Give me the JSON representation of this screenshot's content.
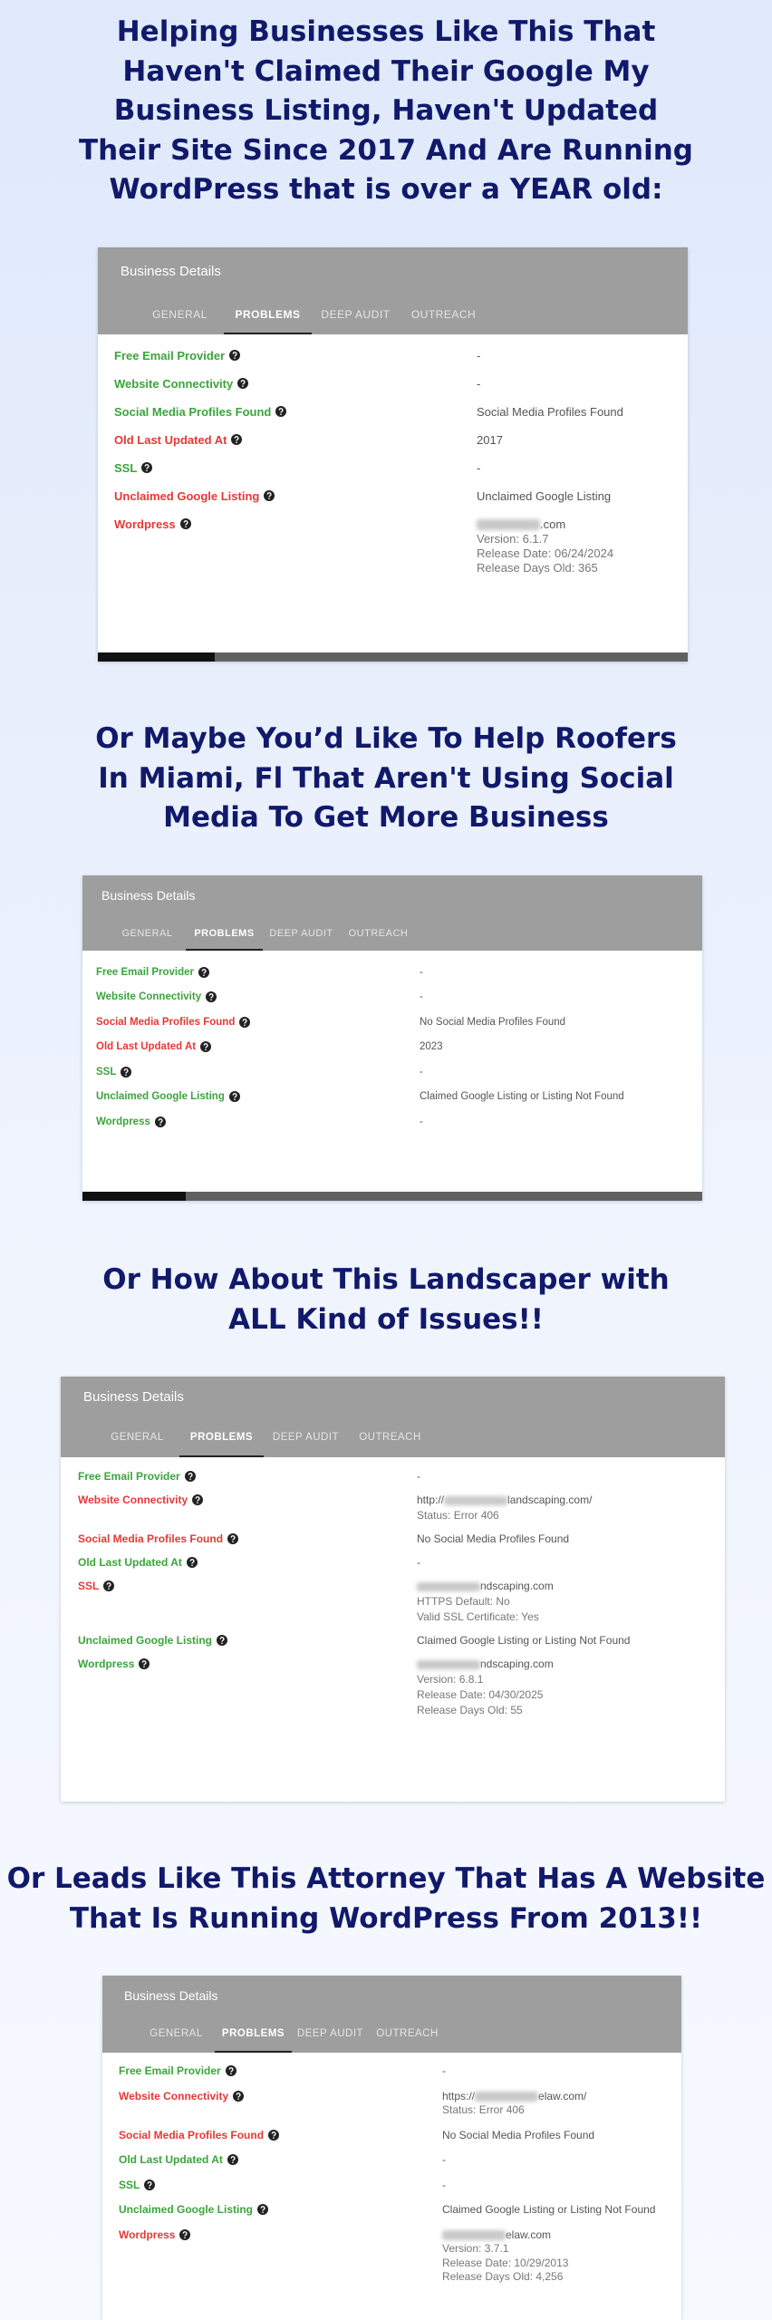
{
  "sections": [
    {
      "heading": [
        "Helping Businesses Like This That",
        "Haven't Claimed Their Google My",
        "Business Listing, Haven't Updated",
        "Their Site Since 2017 And Are Running",
        "WordPress that is over a YEAR old:"
      ],
      "card": {
        "title": "Business Details",
        "tabs": [
          "GENERAL",
          "PROBLEMS",
          "DEEP AUDIT",
          "OUTREACH"
        ],
        "active_tab": 1,
        "rows": [
          {
            "label": "Free Email Provider",
            "status": "green",
            "value": [
              "-"
            ]
          },
          {
            "label": "Website Connectivity",
            "status": "green",
            "value": [
              "-"
            ]
          },
          {
            "label": "Social Media Profiles Found",
            "status": "green",
            "value": [
              "Social Media Profiles Found"
            ]
          },
          {
            "label": "Old Last Updated At",
            "status": "red",
            "value": [
              "2017"
            ]
          },
          {
            "label": "SSL",
            "status": "green",
            "value": [
              "-"
            ]
          },
          {
            "label": "Unclaimed Google Listing",
            "status": "red",
            "value": [
              "Unclaimed Google Listing"
            ]
          },
          {
            "label": "Wordpress",
            "status": "red",
            "value": [
              [
                "",
                ".com"
              ],
              "Version: 6.1.7",
              "Release Date: 06/24/2024",
              "Release Days Old: 365"
            ]
          }
        ]
      }
    },
    {
      "heading": [
        "Or Maybe You’d Like To Help Roofers",
        "In Miami, Fl That Aren't Using Social",
        "Media To Get More Business"
      ],
      "card": {
        "title": "Business Details",
        "tabs": [
          "GENERAL",
          "PROBLEMS",
          "DEEP AUDIT",
          "OUTREACH"
        ],
        "active_tab": 1,
        "rows": [
          {
            "label": "Free Email Provider",
            "status": "green",
            "value": [
              "-"
            ]
          },
          {
            "label": "Website Connectivity",
            "status": "green",
            "value": [
              "-"
            ]
          },
          {
            "label": "Social Media Profiles Found",
            "status": "red",
            "value": [
              "No Social Media Profiles Found"
            ]
          },
          {
            "label": "Old Last Updated At",
            "status": "red",
            "value": [
              "2023"
            ]
          },
          {
            "label": "SSL",
            "status": "green",
            "value": [
              "-"
            ]
          },
          {
            "label": "Unclaimed Google Listing",
            "status": "green",
            "value": [
              "Claimed Google Listing or Listing Not Found"
            ]
          },
          {
            "label": "Wordpress",
            "status": "green",
            "value": [
              "-"
            ]
          }
        ]
      }
    },
    {
      "heading": [
        "Or How About This Landscaper with",
        "ALL Kind of Issues!!"
      ],
      "card": {
        "title": "Business Details",
        "tabs": [
          "GENERAL",
          "PROBLEMS",
          "DEEP AUDIT",
          "OUTREACH"
        ],
        "active_tab": 1,
        "rows": [
          {
            "label": "Free Email Provider",
            "status": "green",
            "value": [
              "-"
            ]
          },
          {
            "label": "Website Connectivity",
            "status": "red",
            "value": [
              [
                "http://",
                "landscaping.com/"
              ],
              "Status: Error 406"
            ]
          },
          {
            "label": "Social Media Profiles Found",
            "status": "red",
            "value": [
              "No Social Media Profiles Found"
            ]
          },
          {
            "label": "Old Last Updated At",
            "status": "green",
            "value": [
              "-"
            ]
          },
          {
            "label": "SSL",
            "status": "red",
            "value": [
              [
                "",
                "ndscaping.com"
              ],
              "HTTPS Default: No",
              "Valid SSL Certificate: Yes"
            ]
          },
          {
            "label": "Unclaimed Google Listing",
            "status": "green",
            "value": [
              "Claimed Google Listing or Listing Not Found"
            ]
          },
          {
            "label": "Wordpress",
            "status": "green",
            "value": [
              [
                "",
                "ndscaping.com"
              ],
              "Version: 6.8.1",
              "Release Date: 04/30/2025",
              "Release Days Old: 55"
            ]
          }
        ]
      }
    },
    {
      "heading": [
        "Or Leads Like This Attorney That Has A Website",
        "That Is Running WordPress From 2013!!"
      ],
      "card": {
        "title": "Business Details",
        "tabs": [
          "GENERAL",
          "PROBLEMS",
          "DEEP AUDIT",
          "OUTREACH"
        ],
        "active_tab": 1,
        "rows": [
          {
            "label": "Free Email Provider",
            "status": "green",
            "value": [
              "-"
            ]
          },
          {
            "label": "Website Connectivity",
            "status": "red",
            "value": [
              [
                "https://",
                "elaw.com/"
              ],
              "Status: Error 406"
            ]
          },
          {
            "label": "Social Media Profiles Found",
            "status": "red",
            "value": [
              "No Social Media Profiles Found"
            ]
          },
          {
            "label": "Old Last Updated At",
            "status": "green",
            "value": [
              "-"
            ]
          },
          {
            "label": "SSL",
            "status": "green",
            "value": [
              "-"
            ]
          },
          {
            "label": "Unclaimed Google Listing",
            "status": "green",
            "value": [
              "Claimed Google Listing or Listing Not Found"
            ]
          },
          {
            "label": "Wordpress",
            "status": "red",
            "value": [
              [
                "",
                "elaw.com"
              ],
              "Version: 3.7.1",
              "Release Date: 10/29/2013",
              "Release Days Old: 4,256"
            ]
          }
        ]
      }
    }
  ]
}
